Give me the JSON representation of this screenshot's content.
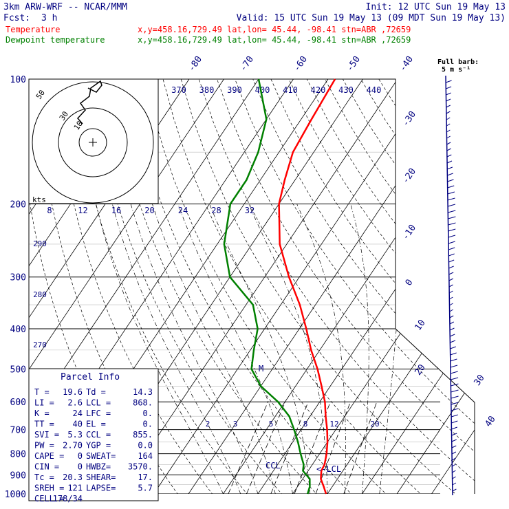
{
  "header": {
    "model": "3km ARW-WRF -- NCAR/MMM",
    "init": "Init: 12 UTC Sun 19 May 13",
    "fcst_label": "Fcst:",
    "fcst_value": "3 h",
    "valid": "Valid: 15 UTC Sun 19 May 13 (09 MDT Sun 19 May 13)",
    "temp_label": "Temperature",
    "dew_label": "Dewpoint temperature",
    "point_info": "x,y=458.16,729.49   lat,lon= 45.44, -98.41   stn=ABR ,72659"
  },
  "colors": {
    "temperature": "#ff0000",
    "dewpoint": "#008000",
    "axes": "#000000",
    "text": "#000080"
  },
  "parcel": {
    "title": "Parcel Info",
    "rows": [
      [
        "T  =",
        "19.6",
        "Td =",
        "14.3"
      ],
      [
        "LI =",
        "2.6",
        "LCL =",
        "868."
      ],
      [
        "K  =",
        "24",
        "LFC =",
        "0."
      ],
      [
        "TT =",
        "40",
        "EL =",
        "0."
      ],
      [
        "SVI =",
        "5.3",
        "CCL =",
        "855."
      ],
      [
        "PW =",
        "2.70",
        "YGP =",
        "0.0"
      ],
      [
        "CAPE =",
        "0",
        "SWEAT=",
        "164"
      ],
      [
        "CIN =",
        "0",
        "HWBZ=",
        "3570."
      ],
      [
        "Tc =",
        "20.3",
        "SHEAR=",
        "17."
      ],
      [
        "SREH =",
        "121",
        "LAPSE=",
        "5.7"
      ],
      [
        "CELL =",
        "178/34",
        "",
        ""
      ]
    ]
  },
  "hodograph": {
    "rings": [
      "10",
      "30",
      "50"
    ],
    "unit": "kts"
  },
  "wind_scale": {
    "title": "Full barb:",
    "value": "5 m s⁻¹"
  },
  "lcl_label": "<-LCL",
  "ccl_label": "CCL",
  "m_label": "M",
  "chart_data": {
    "type": "line",
    "title": "",
    "yscale": "log",
    "ylim": [
      1000,
      100
    ],
    "pressure_ticks": [
      "100",
      "200",
      "300",
      "400",
      "500",
      "600",
      "700",
      "800",
      "900",
      "1000"
    ],
    "isotherm_labels": [
      "-80",
      "-70",
      "-60",
      "-50",
      "-40",
      "-30",
      "-20",
      "-10",
      "0",
      "10",
      "20",
      "30",
      "40"
    ],
    "theta_labels": [
      "370",
      "380",
      "390",
      "400",
      "410",
      "420",
      "430",
      "440"
    ],
    "dry_adiabat_labels": [
      "290",
      "280",
      "270"
    ],
    "mixing_ratio_labels": [
      "2",
      "3",
      "5",
      "8",
      "12",
      "20"
    ],
    "kts_ticks": [
      "8",
      "12",
      "16",
      "20",
      "24",
      "28",
      "32"
    ],
    "series": [
      {
        "name": "Temperature",
        "color": "#ff0000",
        "points": [
          [
            1000,
            19.6
          ],
          [
            960,
            17.5
          ],
          [
            920,
            15.2
          ],
          [
            880,
            13.8
          ],
          [
            850,
            13.5
          ],
          [
            800,
            12.0
          ],
          [
            750,
            10.0
          ],
          [
            700,
            7.5
          ],
          [
            650,
            4.5
          ],
          [
            600,
            1.5
          ],
          [
            550,
            -2.5
          ],
          [
            500,
            -7.0
          ],
          [
            450,
            -12.5
          ],
          [
            400,
            -18.0
          ],
          [
            350,
            -24.5
          ],
          [
            300,
            -33.0
          ],
          [
            250,
            -42.0
          ],
          [
            200,
            -50.0
          ],
          [
            175,
            -53.0
          ],
          [
            150,
            -56.0
          ],
          [
            125,
            -57.0
          ],
          [
            100,
            -58.0
          ]
        ]
      },
      {
        "name": "Dewpoint temperature",
        "color": "#008000",
        "points": [
          [
            1000,
            14.3
          ],
          [
            960,
            13.5
          ],
          [
            920,
            12.0
          ],
          [
            880,
            8.5
          ],
          [
            850,
            7.5
          ],
          [
            800,
            4.5
          ],
          [
            750,
            1.5
          ],
          [
            700,
            -2.0
          ],
          [
            650,
            -6.0
          ],
          [
            600,
            -12.0
          ],
          [
            550,
            -20.0
          ],
          [
            500,
            -26.0
          ],
          [
            450,
            -29.0
          ],
          [
            400,
            -32.0
          ],
          [
            350,
            -38.0
          ],
          [
            300,
            -50.0
          ],
          [
            250,
            -58.0
          ],
          [
            200,
            -64.0
          ],
          [
            175,
            -64.0
          ],
          [
            150,
            -66.0
          ],
          [
            125,
            -70.0
          ],
          [
            100,
            -80.0
          ]
        ]
      }
    ]
  }
}
